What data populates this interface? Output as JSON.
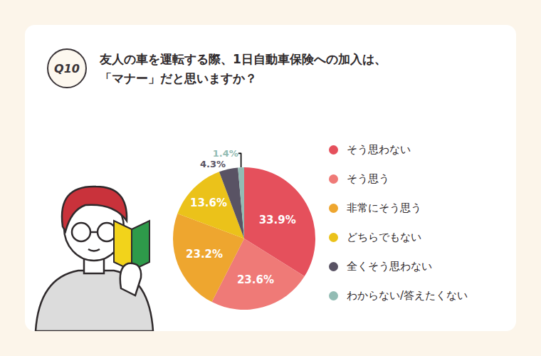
{
  "chart_data": {
    "type": "pie",
    "question": "Q10",
    "title": [
      "友人の車を運転する際、1日自動車保険への加入は、",
      "「マナー」だと思いますか？"
    ],
    "categories": [
      "そう思わない",
      "そう思う",
      "非常にそう思う",
      "どちらでもない",
      "全くそう思わない",
      "わからない/答えたくない"
    ],
    "values": [
      33.9,
      23.6,
      23.2,
      13.6,
      4.3,
      1.4
    ],
    "value_labels": [
      "33.9%",
      "23.6%",
      "23.2%",
      "13.6%",
      "4.3%",
      "1.4%"
    ],
    "colors": [
      "#e5505c",
      "#ef7a77",
      "#eea62f",
      "#ebc21a",
      "#595364",
      "#93bcb4"
    ],
    "data_labels": true,
    "legend": "right"
  }
}
